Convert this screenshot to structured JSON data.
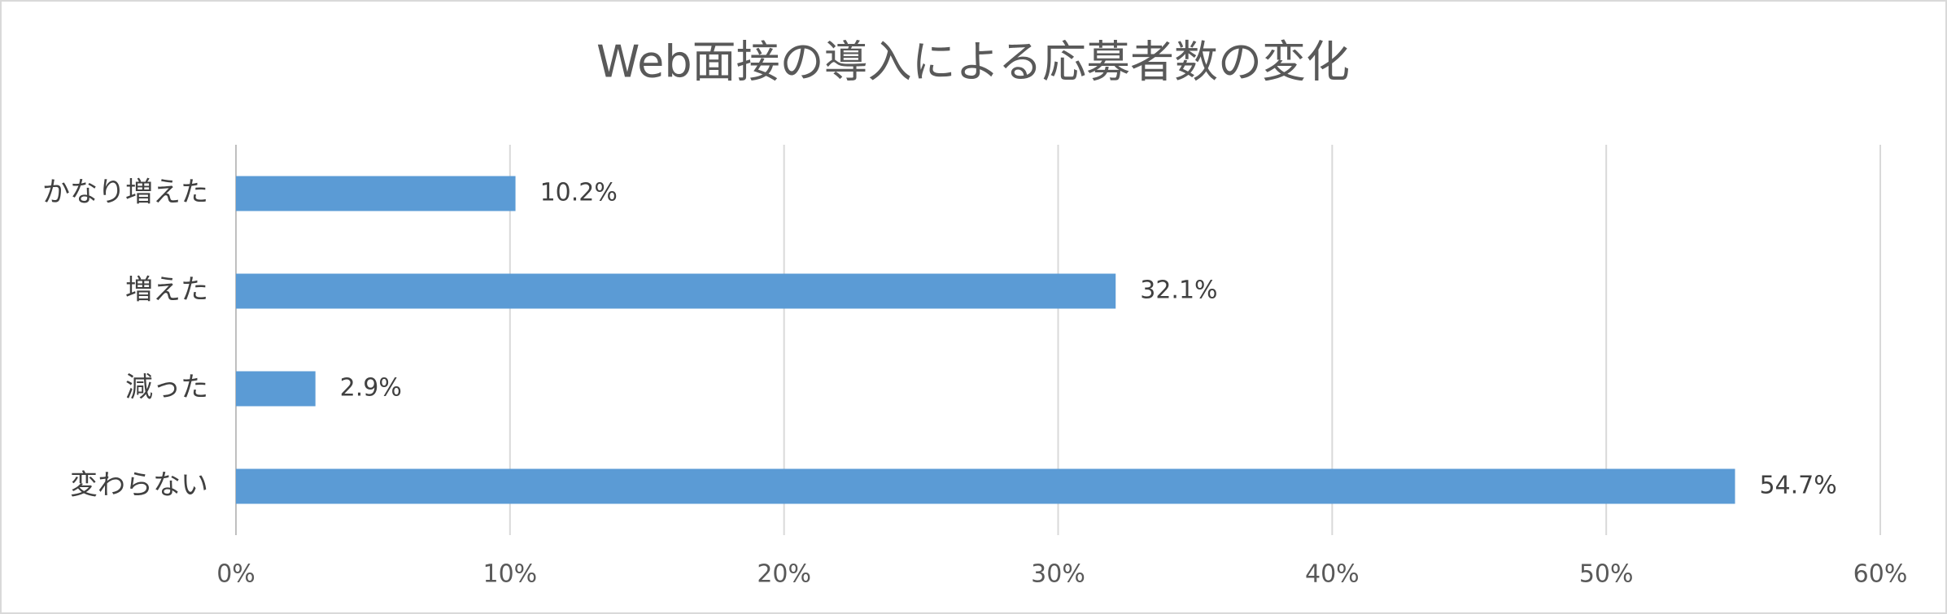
{
  "chart_data": {
    "type": "bar",
    "orientation": "horizontal",
    "title": "Web面接の導入による応募者数の変化",
    "categories": [
      "かなり増えた",
      "増えた",
      "減った",
      "変わらない"
    ],
    "values": [
      10.2,
      32.1,
      2.9,
      54.7
    ],
    "value_labels": [
      "10.2%",
      "32.1%",
      "2.9%",
      "54.7%"
    ],
    "color": "#5b9bd5",
    "xlim": [
      0,
      60
    ],
    "xticks": [
      {
        "value": 0,
        "label": "0%"
      },
      {
        "value": 10,
        "label": "10%"
      },
      {
        "value": 20,
        "label": "20%"
      },
      {
        "value": 30,
        "label": "30%"
      },
      {
        "value": 40,
        "label": "40%"
      },
      {
        "value": 50,
        "label": "50%"
      },
      {
        "value": 60,
        "label": "60%"
      }
    ],
    "grid": true
  }
}
